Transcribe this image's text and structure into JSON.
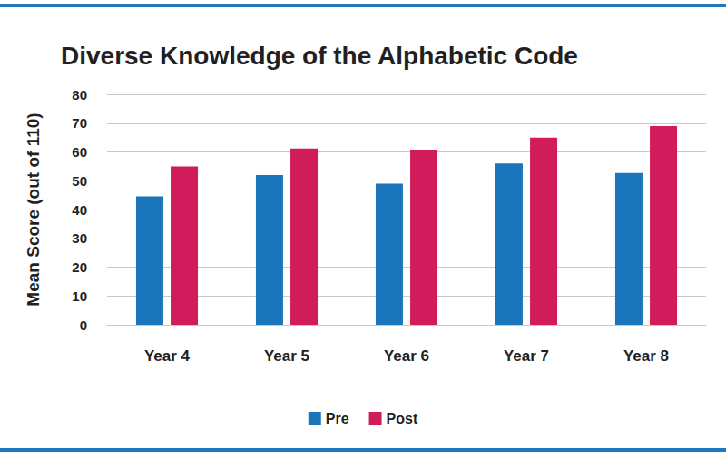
{
  "chart_data": {
    "type": "bar",
    "title": "Diverse Knowledge of the Alphabetic Code",
    "y_label": "Mean Score (out of 110)",
    "categories": [
      "Year 4",
      "Year 5",
      "Year 6",
      "Year 7",
      "Year 8"
    ],
    "series": [
      {
        "name": "Pre",
        "color": "#1a75bb",
        "values": [
          44.6,
          52,
          49,
          56,
          52.7
        ]
      },
      {
        "name": "Post",
        "color": "#d01c5b",
        "values": [
          55,
          61.2,
          60.8,
          65,
          69
        ]
      }
    ],
    "ylim": [
      0,
      80
    ],
    "yticks": [
      0,
      10,
      20,
      30,
      40,
      50,
      60,
      70,
      80
    ],
    "grid": true,
    "legend": "bottom"
  }
}
